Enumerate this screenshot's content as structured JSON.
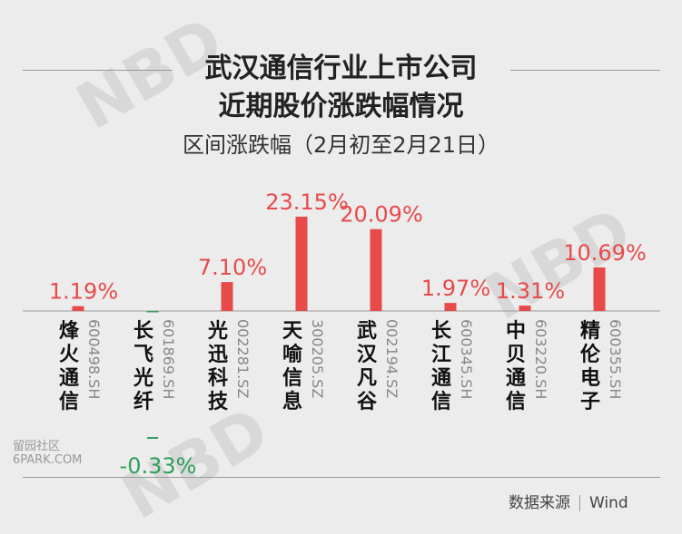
{
  "header": {
    "title_line1": "武汉通信行业上市公司",
    "title_line2": "近期股价涨跌幅情况",
    "subtitle": "区间涨跌幅（2月初至2月21日）"
  },
  "footer": {
    "source_label": "数据来源",
    "source_value": "Wind"
  },
  "watermark": {
    "brand": "NBD",
    "site_line1": "留园社区",
    "site_line2": "6PARK.COM"
  },
  "colors": {
    "positive": "#e84a4a",
    "negative": "#2ea05a",
    "axis": "#9a9a9a"
  },
  "chart_data": {
    "type": "bar",
    "unit": "%",
    "categories": [
      {
        "name": "烽火通信",
        "code": "600498.SH"
      },
      {
        "name": "长飞光纤",
        "code": "601869.SH"
      },
      {
        "name": "光迅科技",
        "code": "002281.SZ"
      },
      {
        "name": "天喻信息",
        "code": "300205.SZ"
      },
      {
        "name": "武汉凡谷",
        "code": "002194.SZ"
      },
      {
        "name": "长江通信",
        "code": "600345.SH"
      },
      {
        "name": "中贝通信",
        "code": "603220.SH"
      },
      {
        "name": "精伦电子",
        "code": "600355.SH"
      }
    ],
    "values": [
      1.19,
      -0.33,
      7.1,
      23.15,
      20.09,
      1.97,
      1.31,
      10.69
    ],
    "value_labels": [
      "1.19%",
      "-0.33%",
      "7.10%",
      "23.15%",
      "20.09%",
      "1.97%",
      "1.31%",
      "10.69%"
    ],
    "ylim": [
      -0.33,
      23.15
    ],
    "grid": false,
    "legend": "none"
  }
}
